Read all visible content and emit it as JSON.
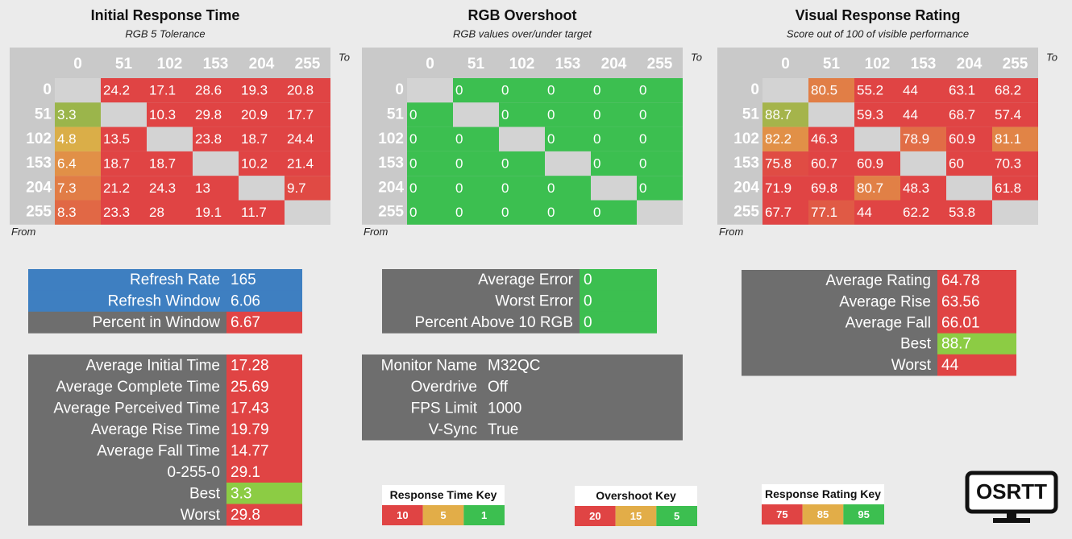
{
  "heatmaps": [
    {
      "title": "Initial Response Time",
      "subtitle": "RGB 5 Tolerance",
      "to_label": "To",
      "from_label": "From",
      "labels": [
        0,
        51,
        102,
        153,
        204,
        255
      ],
      "values": [
        [
          null,
          24.2,
          17.1,
          28.6,
          19.3,
          20.8
        ],
        [
          3.3,
          null,
          10.3,
          29.8,
          20.9,
          17.7
        ],
        [
          4.8,
          13.5,
          null,
          23.8,
          18.7,
          24.4
        ],
        [
          6.4,
          18.7,
          18.7,
          null,
          10.2,
          21.4
        ],
        [
          7.3,
          21.2,
          24.3,
          13,
          null,
          9.7
        ],
        [
          8.3,
          23.3,
          28,
          19.1,
          11.7,
          null
        ]
      ]
    },
    {
      "title": "RGB Overshoot",
      "subtitle": "RGB values over/under target",
      "to_label": "To",
      "from_label": "From",
      "labels": [
        0,
        51,
        102,
        153,
        204,
        255
      ],
      "values": [
        [
          null,
          0,
          0,
          0,
          0,
          0
        ],
        [
          0,
          null,
          0,
          0,
          0,
          0
        ],
        [
          0,
          0,
          null,
          0,
          0,
          0
        ],
        [
          0,
          0,
          0,
          null,
          0,
          0
        ],
        [
          0,
          0,
          0,
          0,
          null,
          0
        ],
        [
          0,
          0,
          0,
          0,
          0,
          null
        ]
      ]
    },
    {
      "title": "Visual Response Rating",
      "subtitle": "Score out of 100 of visible performance",
      "to_label": "To",
      "from_label": "From",
      "labels": [
        0,
        51,
        102,
        153,
        204,
        255
      ],
      "values": [
        [
          null,
          80.5,
          55.2,
          44,
          63.1,
          68.2
        ],
        [
          88.7,
          null,
          59.3,
          44,
          68.7,
          57.4
        ],
        [
          82.2,
          46.3,
          null,
          78.9,
          60.9,
          81.1
        ],
        [
          75.8,
          60.7,
          60.9,
          null,
          60,
          70.3
        ],
        [
          71.9,
          69.8,
          80.7,
          48.3,
          null,
          61.8
        ],
        [
          67.7,
          77.1,
          44,
          62.2,
          53.8,
          null
        ]
      ]
    }
  ],
  "summaries": [
    {
      "rows": [
        {
          "label": "Refresh Rate",
          "value": 165,
          "label_color": "#3e7fc1",
          "value_color": "#3e7fc1"
        },
        {
          "label": "Refresh Window",
          "value": 6.06,
          "label_color": "#3e7fc1",
          "value_color": "#3e7fc1"
        },
        {
          "label": "Percent in Window",
          "value": 6.67,
          "label_color": "#6e6e6e",
          "value_color": "#e04444"
        }
      ]
    },
    {
      "rows": [
        {
          "label": "Average Initial Time",
          "value": 17.28,
          "label_color": "#6e6e6e",
          "value_color": "#e04444"
        },
        {
          "label": "Average Complete Time",
          "value": 25.69,
          "label_color": "#6e6e6e",
          "value_color": "#e04444"
        },
        {
          "label": "Average Perceived Time",
          "value": 17.43,
          "label_color": "#6e6e6e",
          "value_color": "#e04444"
        },
        {
          "label": "Average Rise Time",
          "value": 19.79,
          "label_color": "#6e6e6e",
          "value_color": "#e04444"
        },
        {
          "label": "Average Fall Time",
          "value": 14.77,
          "label_color": "#6e6e6e",
          "value_color": "#e04444"
        },
        {
          "label": "0-255-0",
          "value": 29.1,
          "label_color": "#6e6e6e",
          "value_color": "#e04444"
        },
        {
          "label": "Best",
          "value": 3.3,
          "label_color": "#6e6e6e",
          "value_color": "#8ccc44"
        },
        {
          "label": "Worst",
          "value": 29.8,
          "label_color": "#6e6e6e",
          "value_color": "#e04444"
        }
      ]
    },
    {
      "rows": [
        {
          "label": "Average Error",
          "value": 0,
          "label_color": "#6e6e6e",
          "value_color": "#3cbf50"
        },
        {
          "label": "Worst Error",
          "value": 0,
          "label_color": "#6e6e6e",
          "value_color": "#3cbf50"
        },
        {
          "label": "Percent Above 10 RGB",
          "value": 0,
          "label_color": "#6e6e6e",
          "value_color": "#3cbf50"
        }
      ]
    },
    {
      "rows": [
        {
          "label": "Monitor Name",
          "value": "M32QC",
          "label_color": "#6e6e6e",
          "value_color": "#6e6e6e"
        },
        {
          "label": "Overdrive",
          "value": "Off",
          "label_color": "#6e6e6e",
          "value_color": "#6e6e6e"
        },
        {
          "label": "FPS Limit",
          "value": 1000,
          "label_color": "#6e6e6e",
          "value_color": "#6e6e6e"
        },
        {
          "label": "V-Sync",
          "value": "True",
          "label_color": "#6e6e6e",
          "value_color": "#6e6e6e"
        }
      ]
    },
    {
      "rows": [
        {
          "label": "Average Rating",
          "value": 64.78,
          "label_color": "#6e6e6e",
          "value_color": "#e04444"
        },
        {
          "label": "Average Rise",
          "value": 63.56,
          "label_color": "#6e6e6e",
          "value_color": "#e04444"
        },
        {
          "label": "Average Fall",
          "value": 66.01,
          "label_color": "#6e6e6e",
          "value_color": "#e04444"
        },
        {
          "label": "Best",
          "value": 88.7,
          "label_color": "#6e6e6e",
          "value_color": "#8ccc44"
        },
        {
          "label": "Worst",
          "value": 44,
          "label_color": "#6e6e6e",
          "value_color": "#e04444"
        }
      ]
    }
  ],
  "keys": [
    {
      "title": "Response Time Key",
      "stops": [
        {
          "value": 10,
          "color": "#e04444"
        },
        {
          "value": 5,
          "color": "#e2ad48"
        },
        {
          "value": 1,
          "color": "#3cbf50"
        }
      ]
    },
    {
      "title": "Overshoot Key",
      "stops": [
        {
          "value": 20,
          "color": "#e04444"
        },
        {
          "value": 15,
          "color": "#e2ad48"
        },
        {
          "value": 5,
          "color": "#3cbf50"
        }
      ]
    },
    {
      "title": "Response Rating Key",
      "stops": [
        {
          "value": 75,
          "color": "#e04444"
        },
        {
          "value": 85,
          "color": "#e2ad48"
        },
        {
          "value": 95,
          "color": "#3cbf50"
        }
      ]
    }
  ],
  "logo": "OSRTT"
}
